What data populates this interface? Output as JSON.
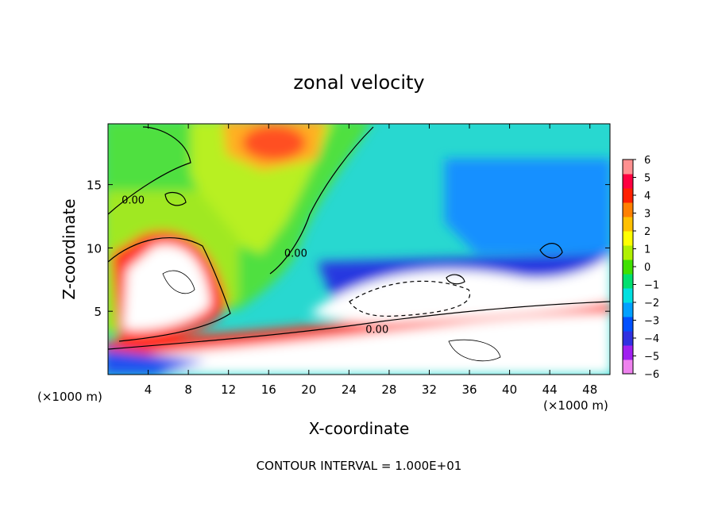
{
  "chart_data": {
    "type": "heatmap",
    "title": "zonal velocity",
    "xlabel": "X-coordinate",
    "ylabel": "Z-coordinate",
    "x_unit_left": "(×1000 m)",
    "x_unit_right": "(×1000 m)",
    "xlim": [
      0,
      50
    ],
    "ylim": [
      0,
      19.8
    ],
    "x_ticks": [
      4,
      8,
      12,
      16,
      20,
      24,
      28,
      32,
      36,
      40,
      44,
      48
    ],
    "y_ticks": [
      5,
      10,
      15
    ],
    "colorbar": {
      "min": -6,
      "max": 6,
      "ticks": [
        6,
        5,
        4,
        3,
        2,
        1,
        0,
        -1,
        -2,
        -3,
        -4,
        -5,
        -6
      ],
      "colors": [
        "#ee82ee",
        "#a020f0",
        "#3030e0",
        "#0050ff",
        "#00a0ff",
        "#00e0e0",
        "#00e070",
        "#40e000",
        "#b0f000",
        "#ffff00",
        "#ffc000",
        "#ff8000",
        "#ff2000",
        "#ff0040",
        "#ff9090"
      ]
    },
    "contour_labels": [
      {
        "text": "0.00",
        "x": 2.5,
        "y": 13.5
      },
      {
        "text": "0.00",
        "x": 26.8,
        "y": 3.3
      },
      {
        "text": "0.00",
        "x": 18.7,
        "y": 9.3
      }
    ],
    "footer": "CONTOUR INTERVAL = 1.000E+01"
  }
}
